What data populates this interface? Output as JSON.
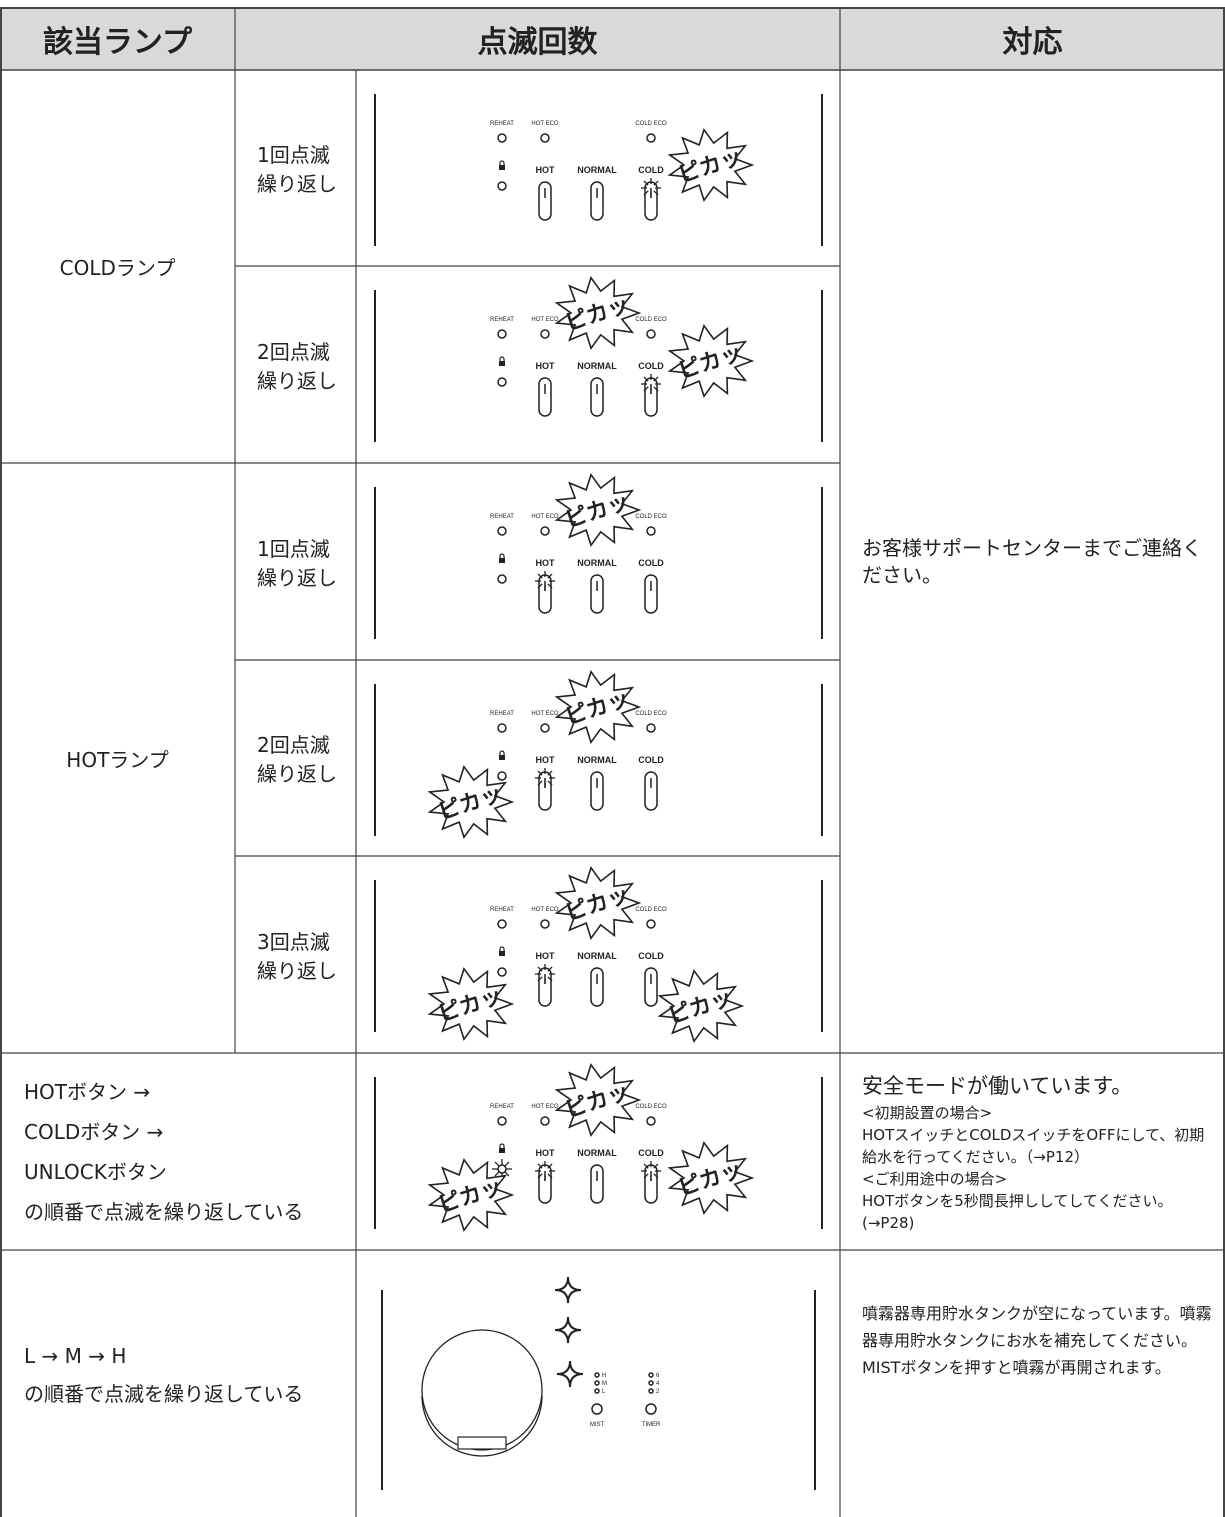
{
  "header": {
    "lamp": "該当ランプ",
    "blink_count": "点滅回数",
    "action": "対応"
  },
  "panel_labels": {
    "reheat": "REHEAT",
    "hot_eco": "HOT ECO",
    "cold_eco": "COLD ECO",
    "hot": "HOT",
    "normal": "NORMAL",
    "cold": "COLD",
    "flash": "ピカッ"
  },
  "mist_labels": {
    "h": "H",
    "m": "M",
    "l": "L",
    "six": "6",
    "four": "4",
    "two": "2",
    "mist": "MIST",
    "timer": "TIMER"
  },
  "groups": [
    {
      "lamp": "COLDランプ",
      "counts": [
        {
          "line1": "1回点滅",
          "line2": "繰り返し"
        },
        {
          "line1": "2回点滅",
          "line2": "繰り返し"
        }
      ]
    },
    {
      "lamp": "HOTランプ",
      "counts": [
        {
          "line1": "1回点滅",
          "line2": "繰り返し"
        },
        {
          "line1": "2回点滅",
          "line2": "繰り返し"
        },
        {
          "line1": "3回点滅",
          "line2": "繰り返し"
        }
      ]
    }
  ],
  "lamp_action": "お客様サポートセンターまでご連絡ください。",
  "safety": {
    "condition": [
      "HOTボタン →",
      "COLDボタン →",
      "UNLOCKボタン",
      "の順番で点滅を繰り返している"
    ],
    "title": "安全モードが働いています。",
    "lines": [
      "<初期設置の場合>",
      "HOTスイッチとCOLDスイッチをOFFにして、初期給水を行ってください。（→P12）",
      "<ご利用途中の場合>",
      "HOTボタンを5秒間長押ししてしてください。(→P28)"
    ]
  },
  "mist": {
    "condition": [
      "L → M → H",
      "の順番で点滅を繰り返している"
    ],
    "action": "噴霧器専用貯水タンクが空になっています。噴霧器専用貯水タンクにお水を補充してください。MISTボタンを押すと噴霧が再開されます。"
  }
}
